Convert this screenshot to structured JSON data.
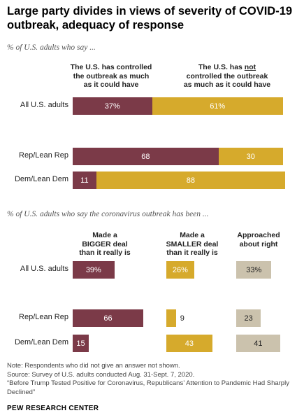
{
  "title": "Large party divides in views of severity of COVID-19 outbreak, adequacy of response",
  "chart_data": [
    {
      "type": "bar",
      "orientation": "horizontal",
      "stacked": true,
      "subtitle": "% of U.S. adults who say ...",
      "series": [
        {
          "name_parts": [
            "The U.S. has controlled",
            "the outbreak as much",
            "as it could have"
          ],
          "color": "#7b3a48",
          "text_color": "#ffffff"
        },
        {
          "name_parts": [
            "The U.S. has ",
            "not",
            " controlled the outbreak",
            "as much as it could have"
          ],
          "color": "#d6aa2c",
          "text_color": "#ffffff"
        }
      ],
      "rows": [
        {
          "label": "All U.S. adults",
          "values": [
            37,
            61
          ],
          "value_labels": [
            "37%",
            "61%"
          ]
        },
        {
          "label": "Rep/Lean Rep",
          "values": [
            68,
            30
          ],
          "value_labels": [
            "68",
            "30"
          ]
        },
        {
          "label": "Dem/Lean Dem",
          "values": [
            11,
            88
          ],
          "value_labels": [
            "11",
            "88"
          ]
        }
      ]
    },
    {
      "type": "bar",
      "orientation": "horizontal",
      "stacked": false,
      "subtitle": "% of U.S. adults who say the coronavirus outbreak has been ...",
      "series": [
        {
          "name_lines": [
            "Made a",
            "BIGGER deal",
            "than it really is"
          ],
          "color": "#7b3a48",
          "text_color": "#ffffff"
        },
        {
          "name_lines": [
            "Made a",
            "SMALLER deal",
            "than it really is"
          ],
          "color": "#d6aa2c",
          "text_color": "#ffffff"
        },
        {
          "name_lines": [
            "Approached",
            "about right"
          ],
          "color": "#cbc2ad",
          "text_color": "#222222"
        }
      ],
      "rows": [
        {
          "label": "All U.S. adults",
          "values": [
            39,
            26,
            33
          ],
          "value_labels": [
            "39%",
            "26%",
            "33%"
          ]
        },
        {
          "label": "Rep/Lean Rep",
          "values": [
            66,
            9,
            23
          ],
          "value_labels": [
            "66",
            "9",
            "23"
          ]
        },
        {
          "label": "Dem/Lean Dem",
          "values": [
            15,
            43,
            41
          ],
          "value_labels": [
            "15",
            "43",
            "41"
          ]
        }
      ]
    }
  ],
  "notes": [
    "Note: Respondents who did not give an answer not shown.",
    "Source: Survey of U.S. adults conducted Aug. 31-Sept. 7, 2020.",
    "“Before Trump Tested Positive for Coronavirus, Republicans’ Attention to Pandemic Had Sharply Declined”"
  ],
  "brand": "PEW RESEARCH CENTER"
}
